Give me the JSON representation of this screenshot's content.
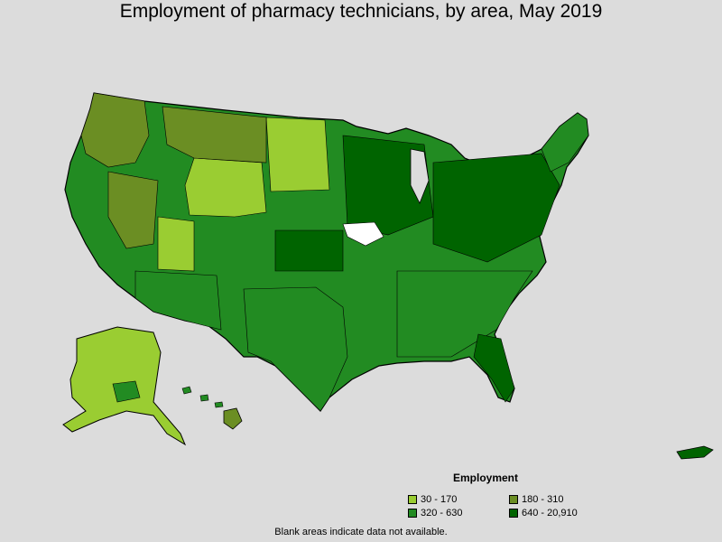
{
  "title": "Employment of pharmacy technicians, by area, May 2019",
  "legend": {
    "title": "Employment",
    "items": [
      {
        "label": "30 - 170",
        "color": "#9acd32"
      },
      {
        "label": "180 - 310",
        "color": "#6b8e23"
      },
      {
        "label": "320 - 630",
        "color": "#228b22"
      },
      {
        "label": "640 - 20,910",
        "color": "#006400"
      }
    ]
  },
  "note": "Blank areas indicate data not available.",
  "colors": {
    "background": "#dcdcdc",
    "border": "#000000",
    "no_data": "#ffffff"
  }
}
